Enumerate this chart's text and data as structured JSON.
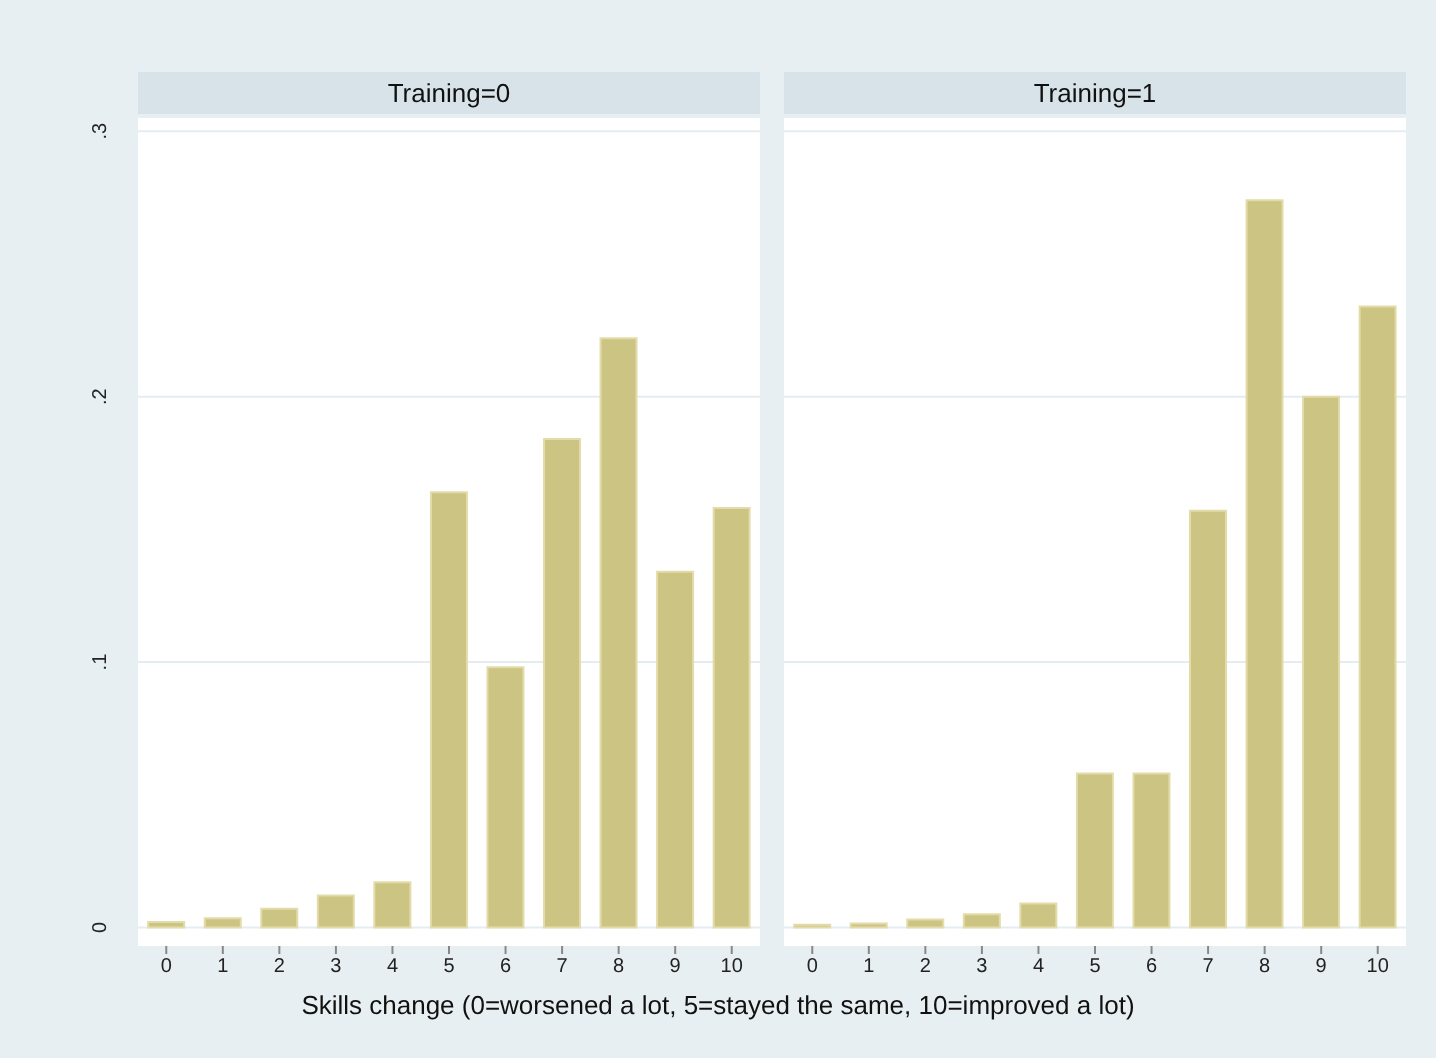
{
  "chart_data": [
    {
      "type": "bar",
      "title": "Training=0",
      "xlabel": "Skills change (0=worsened a lot, 5=stayed the same, 10=improved a lot)",
      "categories": [
        "0",
        "1",
        "2",
        "3",
        "4",
        "5",
        "6",
        "7",
        "8",
        "9",
        "10"
      ],
      "values": [
        0.002,
        0.0035,
        0.007,
        0.012,
        0.017,
        0.164,
        0.098,
        0.184,
        0.222,
        0.134,
        0.158
      ],
      "color": "#ccc482",
      "ylim": [
        -0.007,
        0.305
      ],
      "yticks": [
        {
          "value": 0,
          "label": "0"
        },
        {
          "value": 0.1,
          "label": ".1"
        },
        {
          "value": 0.2,
          "label": ".2"
        },
        {
          "value": 0.3,
          "label": ".3"
        }
      ],
      "grid": "y"
    },
    {
      "type": "bar",
      "title": "Training=1",
      "categories": [
        "0",
        "1",
        "2",
        "3",
        "4",
        "5",
        "6",
        "7",
        "8",
        "9",
        "10"
      ],
      "values": [
        0.001,
        0.0015,
        0.003,
        0.005,
        0.009,
        0.058,
        0.058,
        0.157,
        0.274,
        0.2,
        0.234
      ],
      "color": "#ccc482",
      "ylim": [
        -0.007,
        0.305
      ],
      "yticks": [
        {
          "value": 0,
          "label": null
        },
        {
          "value": 0.1,
          "label": null
        },
        {
          "value": 0.2,
          "label": null
        },
        {
          "value": 0.3,
          "label": null
        }
      ],
      "grid": "y",
      "tick_labels": "x"
    }
  ]
}
